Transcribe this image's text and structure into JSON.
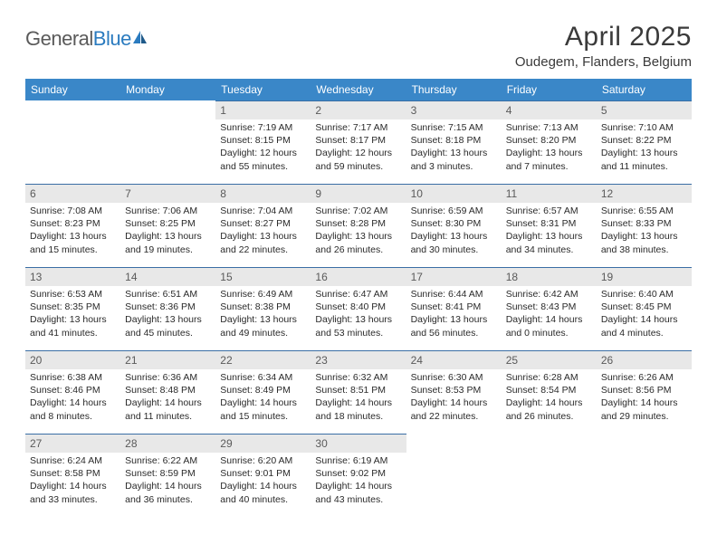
{
  "logo": {
    "text1": "General",
    "text2": "Blue"
  },
  "title": "April 2025",
  "location": "Oudegem, Flanders, Belgium",
  "colors": {
    "header_bg": "#3a87c8",
    "header_text": "#ffffff",
    "cell_border": "#3a6ea5",
    "daynum_shade": "#e8e8e8",
    "text": "#2a2a2a"
  },
  "weekdays": [
    "Sunday",
    "Monday",
    "Tuesday",
    "Wednesday",
    "Thursday",
    "Friday",
    "Saturday"
  ],
  "weeks": [
    [
      null,
      null,
      {
        "n": "1",
        "sr": "7:19 AM",
        "ss": "8:15 PM",
        "dl": "12 hours and 55 minutes."
      },
      {
        "n": "2",
        "sr": "7:17 AM",
        "ss": "8:17 PM",
        "dl": "12 hours and 59 minutes."
      },
      {
        "n": "3",
        "sr": "7:15 AM",
        "ss": "8:18 PM",
        "dl": "13 hours and 3 minutes."
      },
      {
        "n": "4",
        "sr": "7:13 AM",
        "ss": "8:20 PM",
        "dl": "13 hours and 7 minutes."
      },
      {
        "n": "5",
        "sr": "7:10 AM",
        "ss": "8:22 PM",
        "dl": "13 hours and 11 minutes."
      }
    ],
    [
      {
        "n": "6",
        "sr": "7:08 AM",
        "ss": "8:23 PM",
        "dl": "13 hours and 15 minutes."
      },
      {
        "n": "7",
        "sr": "7:06 AM",
        "ss": "8:25 PM",
        "dl": "13 hours and 19 minutes."
      },
      {
        "n": "8",
        "sr": "7:04 AM",
        "ss": "8:27 PM",
        "dl": "13 hours and 22 minutes."
      },
      {
        "n": "9",
        "sr": "7:02 AM",
        "ss": "8:28 PM",
        "dl": "13 hours and 26 minutes."
      },
      {
        "n": "10",
        "sr": "6:59 AM",
        "ss": "8:30 PM",
        "dl": "13 hours and 30 minutes."
      },
      {
        "n": "11",
        "sr": "6:57 AM",
        "ss": "8:31 PM",
        "dl": "13 hours and 34 minutes."
      },
      {
        "n": "12",
        "sr": "6:55 AM",
        "ss": "8:33 PM",
        "dl": "13 hours and 38 minutes."
      }
    ],
    [
      {
        "n": "13",
        "sr": "6:53 AM",
        "ss": "8:35 PM",
        "dl": "13 hours and 41 minutes."
      },
      {
        "n": "14",
        "sr": "6:51 AM",
        "ss": "8:36 PM",
        "dl": "13 hours and 45 minutes."
      },
      {
        "n": "15",
        "sr": "6:49 AM",
        "ss": "8:38 PM",
        "dl": "13 hours and 49 minutes."
      },
      {
        "n": "16",
        "sr": "6:47 AM",
        "ss": "8:40 PM",
        "dl": "13 hours and 53 minutes."
      },
      {
        "n": "17",
        "sr": "6:44 AM",
        "ss": "8:41 PM",
        "dl": "13 hours and 56 minutes."
      },
      {
        "n": "18",
        "sr": "6:42 AM",
        "ss": "8:43 PM",
        "dl": "14 hours and 0 minutes."
      },
      {
        "n": "19",
        "sr": "6:40 AM",
        "ss": "8:45 PM",
        "dl": "14 hours and 4 minutes."
      }
    ],
    [
      {
        "n": "20",
        "sr": "6:38 AM",
        "ss": "8:46 PM",
        "dl": "14 hours and 8 minutes."
      },
      {
        "n": "21",
        "sr": "6:36 AM",
        "ss": "8:48 PM",
        "dl": "14 hours and 11 minutes."
      },
      {
        "n": "22",
        "sr": "6:34 AM",
        "ss": "8:49 PM",
        "dl": "14 hours and 15 minutes."
      },
      {
        "n": "23",
        "sr": "6:32 AM",
        "ss": "8:51 PM",
        "dl": "14 hours and 18 minutes."
      },
      {
        "n": "24",
        "sr": "6:30 AM",
        "ss": "8:53 PM",
        "dl": "14 hours and 22 minutes."
      },
      {
        "n": "25",
        "sr": "6:28 AM",
        "ss": "8:54 PM",
        "dl": "14 hours and 26 minutes."
      },
      {
        "n": "26",
        "sr": "6:26 AM",
        "ss": "8:56 PM",
        "dl": "14 hours and 29 minutes."
      }
    ],
    [
      {
        "n": "27",
        "sr": "6:24 AM",
        "ss": "8:58 PM",
        "dl": "14 hours and 33 minutes."
      },
      {
        "n": "28",
        "sr": "6:22 AM",
        "ss": "8:59 PM",
        "dl": "14 hours and 36 minutes."
      },
      {
        "n": "29",
        "sr": "6:20 AM",
        "ss": "9:01 PM",
        "dl": "14 hours and 40 minutes."
      },
      {
        "n": "30",
        "sr": "6:19 AM",
        "ss": "9:02 PM",
        "dl": "14 hours and 43 minutes."
      },
      null,
      null,
      null
    ]
  ],
  "labels": {
    "sunrise": "Sunrise:",
    "sunset": "Sunset:",
    "daylight": "Daylight:"
  }
}
